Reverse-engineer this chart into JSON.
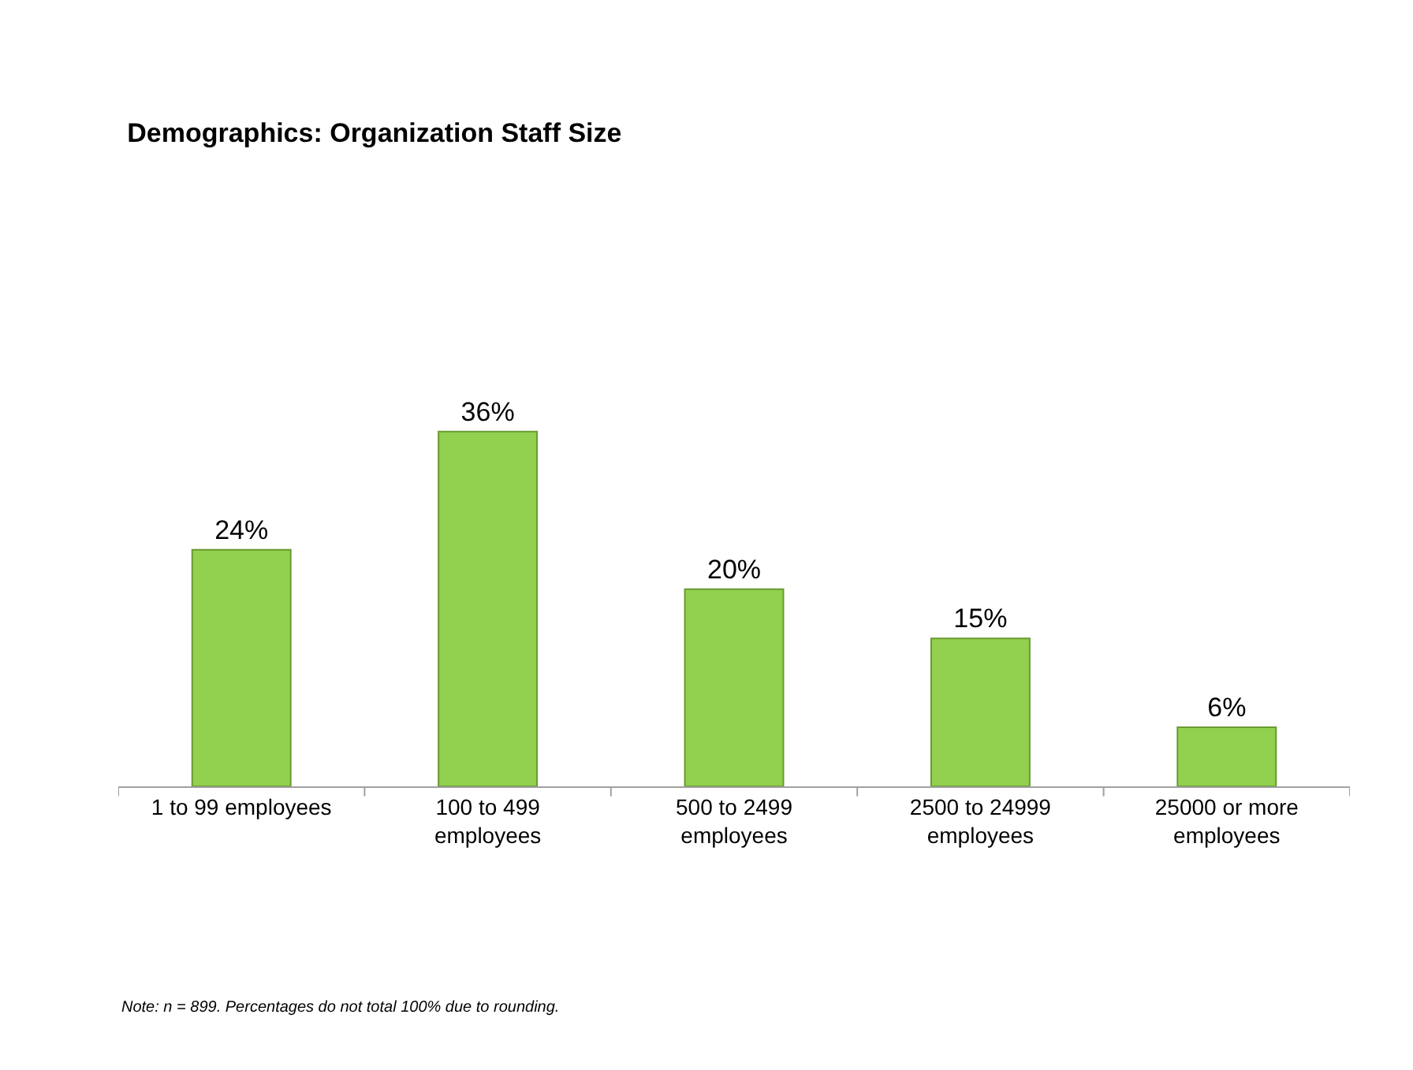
{
  "chart_data": {
    "type": "bar",
    "title": "Demographics: Organization Staff Size",
    "categories": [
      "1 to 99 employees",
      "100 to 499 employees",
      "500 to 2499 employees",
      "2500 to 24999 employees",
      "25000 or more employees"
    ],
    "values": [
      24,
      36,
      20,
      15,
      6
    ],
    "value_labels": [
      "24%",
      "36%",
      "20%",
      "15%",
      "6%"
    ],
    "color": "#92d050",
    "tick_labels": "x",
    "grid": false,
    "legend": false,
    "annotations": [
      "Note: n = 899. Percentages do not total 100% due to rounding."
    ]
  }
}
